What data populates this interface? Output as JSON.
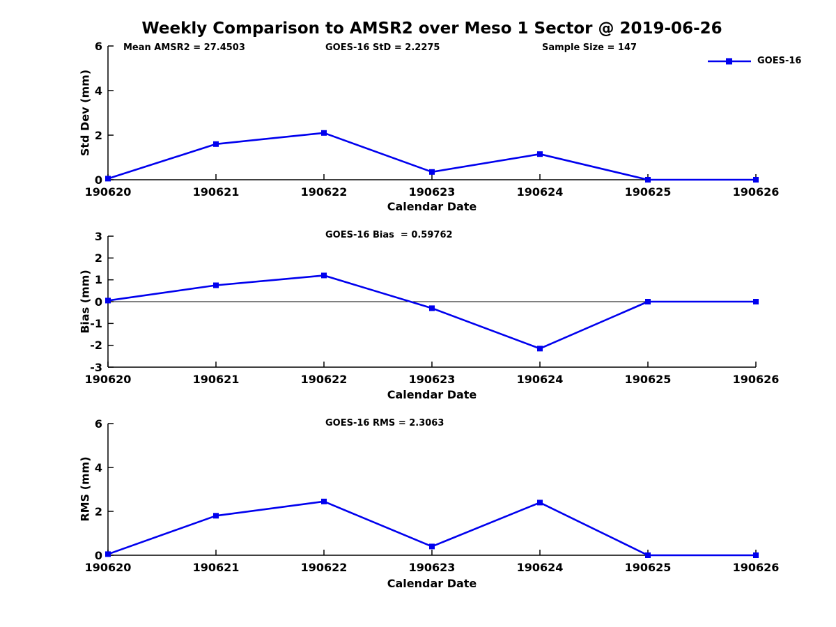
{
  "title": "Weekly Comparison to AMSR2 over Meso 1 Sector @ 2019-06-26",
  "legend": {
    "label": "GOES-16"
  },
  "colors": {
    "line": "#0000EE",
    "axis": "#000000",
    "text": "#000000",
    "background": "#FFFFFF"
  },
  "chart_data": [
    {
      "type": "line",
      "ylabel": "Std Dev (mm)",
      "xlabel": "Calendar Date",
      "x": [
        "190620",
        "190621",
        "190622",
        "190623",
        "190624",
        "190625",
        "190626"
      ],
      "series": [
        {
          "name": "GOES-16",
          "values": [
            0.05,
            1.6,
            2.1,
            0.35,
            1.15,
            0.0,
            0.0
          ]
        }
      ],
      "ylim": [
        0,
        6
      ],
      "yticks": [
        0,
        2,
        4,
        6
      ],
      "annotations": [
        "Mean AMSR2 = 27.4503",
        "GOES-16 StD = 2.2275",
        "Sample Size = 147"
      ],
      "grid": false,
      "legend_position": "top-right"
    },
    {
      "type": "line",
      "ylabel": "Bias (mm)",
      "xlabel": "Calendar Date",
      "x": [
        "190620",
        "190621",
        "190622",
        "190623",
        "190624",
        "190625",
        "190626"
      ],
      "series": [
        {
          "name": "GOES-16",
          "values": [
            0.05,
            0.75,
            1.2,
            -0.3,
            -2.15,
            0.0,
            0.0
          ]
        }
      ],
      "ylim": [
        -3,
        3
      ],
      "yticks": [
        3,
        2,
        1,
        0,
        -1,
        -2,
        -3
      ],
      "annotations": [
        "GOES-16 Bias  = 0.59762"
      ],
      "zero_line": true,
      "grid": false
    },
    {
      "type": "line",
      "ylabel": "RMS (mm)",
      "xlabel": "Calendar Date",
      "x": [
        "190620",
        "190621",
        "190622",
        "190623",
        "190624",
        "190625",
        "190626"
      ],
      "series": [
        {
          "name": "GOES-16",
          "values": [
            0.05,
            1.8,
            2.45,
            0.4,
            2.4,
            0.0,
            0.0
          ]
        }
      ],
      "ylim": [
        0,
        6
      ],
      "yticks": [
        0,
        2,
        4,
        6
      ],
      "annotations": [
        "GOES-16 RMS = 2.3063"
      ],
      "grid": false
    }
  ]
}
